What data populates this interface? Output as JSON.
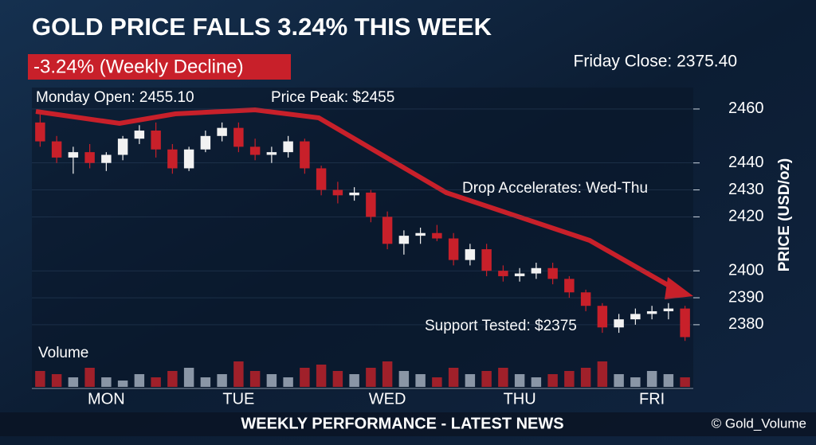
{
  "chart_data": {
    "type": "candlestick",
    "title": "GOLD PRICE FALLS 3.24% THIS WEEK",
    "badge": "-3.24% (Weekly Decline)",
    "annotations": [
      "Friday Close: 2375.40",
      "Monday Open: 2455.10",
      "Price Peak: $2455",
      "Drop Accelerates: Wed-Thu",
      "Support Tested: $2375"
    ],
    "volume_label": "Volume",
    "y_label": "PRICE (USD/oz)",
    "footer": "WEEKLY PERFORMANCE - LATEST NEWS",
    "watermark": "© Gold_Volume",
    "categories": [
      null,
      null,
      null,
      null,
      "MON",
      null,
      null,
      null,
      null,
      null,
      null,
      null,
      "TUE",
      null,
      null,
      null,
      null,
      null,
      null,
      null,
      null,
      "WED",
      null,
      null,
      null,
      null,
      null,
      null,
      null,
      "THU",
      null,
      null,
      null,
      null,
      null,
      null,
      null,
      "FRI",
      null,
      null
    ],
    "open": [
      2455,
      2448,
      2442,
      2444,
      2440,
      2443,
      2449,
      2452,
      2445,
      2438,
      2445,
      2450,
      2453,
      2446,
      2443,
      2444,
      2448,
      2438,
      2430,
      2428,
      2429,
      2420,
      2410,
      2413,
      2414,
      2412,
      2404,
      2408,
      2400,
      2398,
      2399,
      2401,
      2397,
      2392,
      2387,
      2379,
      2382,
      2384,
      2385,
      2386
    ],
    "high": [
      2458,
      2450,
      2446,
      2447,
      2444,
      2450,
      2454,
      2455,
      2447,
      2446,
      2452,
      2455,
      2455,
      2449,
      2446,
      2450,
      2449,
      2439,
      2433,
      2431,
      2430,
      2422,
      2415,
      2416,
      2417,
      2414,
      2410,
      2410,
      2402,
      2401,
      2403,
      2403,
      2398,
      2393,
      2388,
      2384,
      2386,
      2387,
      2388,
      2387
    ],
    "low": [
      2446,
      2440,
      2436,
      2438,
      2437,
      2441,
      2447,
      2442,
      2436,
      2437,
      2444,
      2448,
      2444,
      2441,
      2440,
      2442,
      2436,
      2428,
      2425,
      2426,
      2418,
      2408,
      2406,
      2410,
      2411,
      2402,
      2402,
      2398,
      2396,
      2396,
      2397,
      2395,
      2390,
      2385,
      2377,
      2377,
      2380,
      2382,
      2382,
      2374
    ],
    "close": [
      2448,
      2442,
      2444,
      2440,
      2443,
      2449,
      2452,
      2445,
      2438,
      2445,
      2450,
      2453,
      2446,
      2443,
      2444,
      2448,
      2438,
      2430,
      2428,
      2429,
      2420,
      2410,
      2413,
      2414,
      2412,
      2404,
      2408,
      2400,
      2398,
      2399,
      2401,
      2397,
      2392,
      2387,
      2379,
      2382,
      2384,
      2385,
      2386,
      2375.4
    ],
    "volume": [
      5,
      4,
      3,
      6,
      3,
      2,
      4,
      3,
      5,
      6,
      3,
      4,
      8,
      5,
      4,
      3,
      6,
      7,
      5,
      4,
      6,
      8,
      5,
      4,
      3,
      6,
      4,
      5,
      6,
      4,
      3,
      4,
      5,
      6,
      8,
      4,
      3,
      5,
      4,
      3
    ],
    "up_color": "#f2f2f2",
    "down_color": "#c8202a",
    "ylim": [
      2372,
      2465
    ],
    "yticks": [
      2460,
      2440,
      2430,
      2420,
      2400,
      2390,
      2380
    ],
    "grid": true
  }
}
